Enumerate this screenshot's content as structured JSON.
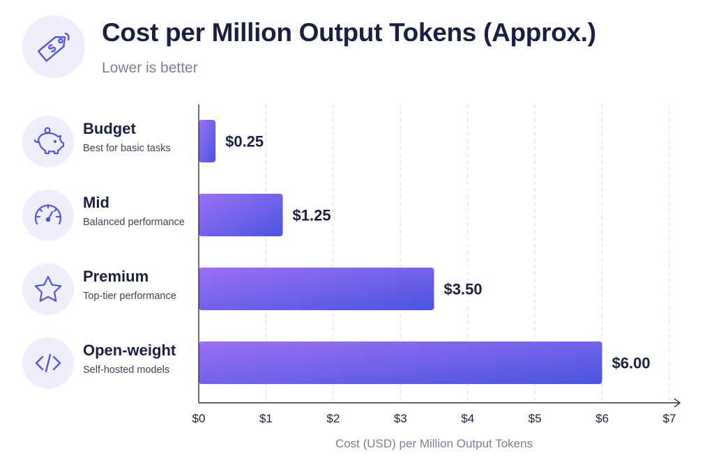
{
  "header": {
    "title": "Cost per Million Output Tokens (Approx.)",
    "subtitle": "Lower is better",
    "icon": "price-tag-icon"
  },
  "colors": {
    "bar_start": "#9b6ff4",
    "bar_end": "#4a55e0",
    "icon_bg": "#f0eefb",
    "icon_stroke": "#4f56d9",
    "text_dark": "#1a2140",
    "text_muted": "#7a7f99"
  },
  "categories": [
    {
      "name": "Budget",
      "description": "Best for basic tasks",
      "icon": "piggy-bank-icon"
    },
    {
      "name": "Mid",
      "description": "Balanced performance",
      "icon": "speedometer-icon"
    },
    {
      "name": "Premium",
      "description": "Top-tier performance",
      "icon": "star-icon"
    },
    {
      "name": "Open-weight",
      "description": "Self-hosted models",
      "icon": "code-icon"
    }
  ],
  "chart_data": {
    "type": "bar",
    "orientation": "horizontal",
    "title": "Cost per Million Output Tokens (Approx.)",
    "subtitle": "Lower is better",
    "categories": [
      "Budget",
      "Mid",
      "Premium",
      "Open-weight"
    ],
    "values": [
      0.25,
      1.25,
      3.5,
      6.0
    ],
    "value_labels": [
      "$0.25",
      "$1.25",
      "$3.50",
      "$6.00"
    ],
    "xlabel": "Cost (USD) per Million Output Tokens",
    "ylabel": "",
    "xlim": [
      0,
      7
    ],
    "x_ticks": [
      0,
      1,
      2,
      3,
      4,
      5,
      6,
      7
    ],
    "x_tick_labels": [
      "$0",
      "$1",
      "$2",
      "$3",
      "$4",
      "$5",
      "$6",
      "$7"
    ],
    "grid": "vertical dashed",
    "legend": "none"
  }
}
